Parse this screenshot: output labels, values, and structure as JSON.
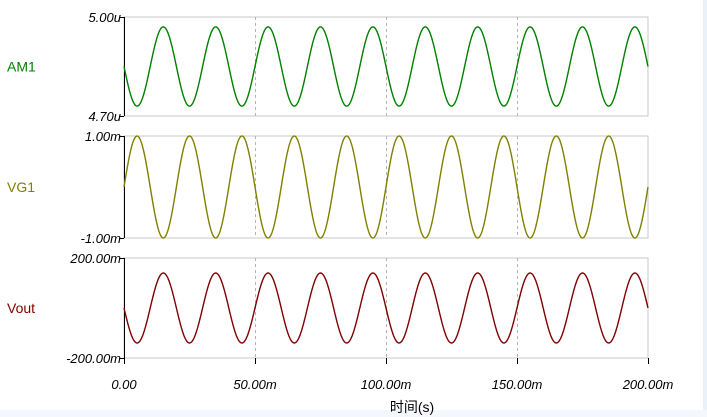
{
  "chart_data": {
    "type": "line",
    "xlabel": "时间(s)",
    "xlim": [
      0,
      200
    ],
    "x_unit": "ms",
    "x_ticks": [
      0,
      50,
      100,
      150,
      200
    ],
    "x_tick_labels": [
      "0.00",
      "50.00m",
      "100.00m",
      "150.00m",
      "200.00m"
    ],
    "grid": "dashed vertical lines at x ticks",
    "panels": [
      {
        "name": "AM1",
        "label": "AM1",
        "unit": "A",
        "ylim": [
          4.7e-06,
          5e-06
        ],
        "y_tick_labels": [
          "5.00u",
          "4.70u"
        ],
        "color": "#008000",
        "series": {
          "type": "sine",
          "frequency_hz": 50,
          "offset": 4.85e-06,
          "amplitude": 1.2e-07,
          "phase_deg": 180
        }
      },
      {
        "name": "VG1",
        "label": "VG1",
        "unit": "V",
        "ylim": [
          -0.001,
          0.001
        ],
        "y_tick_labels": [
          "1.00m",
          "-1.00m"
        ],
        "color": "#808000",
        "series": {
          "type": "sine",
          "frequency_hz": 50,
          "offset": 0,
          "amplitude": 0.001,
          "phase_deg": 0
        }
      },
      {
        "name": "Vout",
        "label": "Vout",
        "unit": "V",
        "ylim": [
          -0.2,
          0.2
        ],
        "y_tick_labels": [
          "200.00m",
          "-200.00m"
        ],
        "color": "#800000",
        "series": {
          "type": "sine",
          "frequency_hz": 50,
          "offset": 0,
          "amplitude": 0.14,
          "phase_deg": 180
        }
      }
    ]
  }
}
